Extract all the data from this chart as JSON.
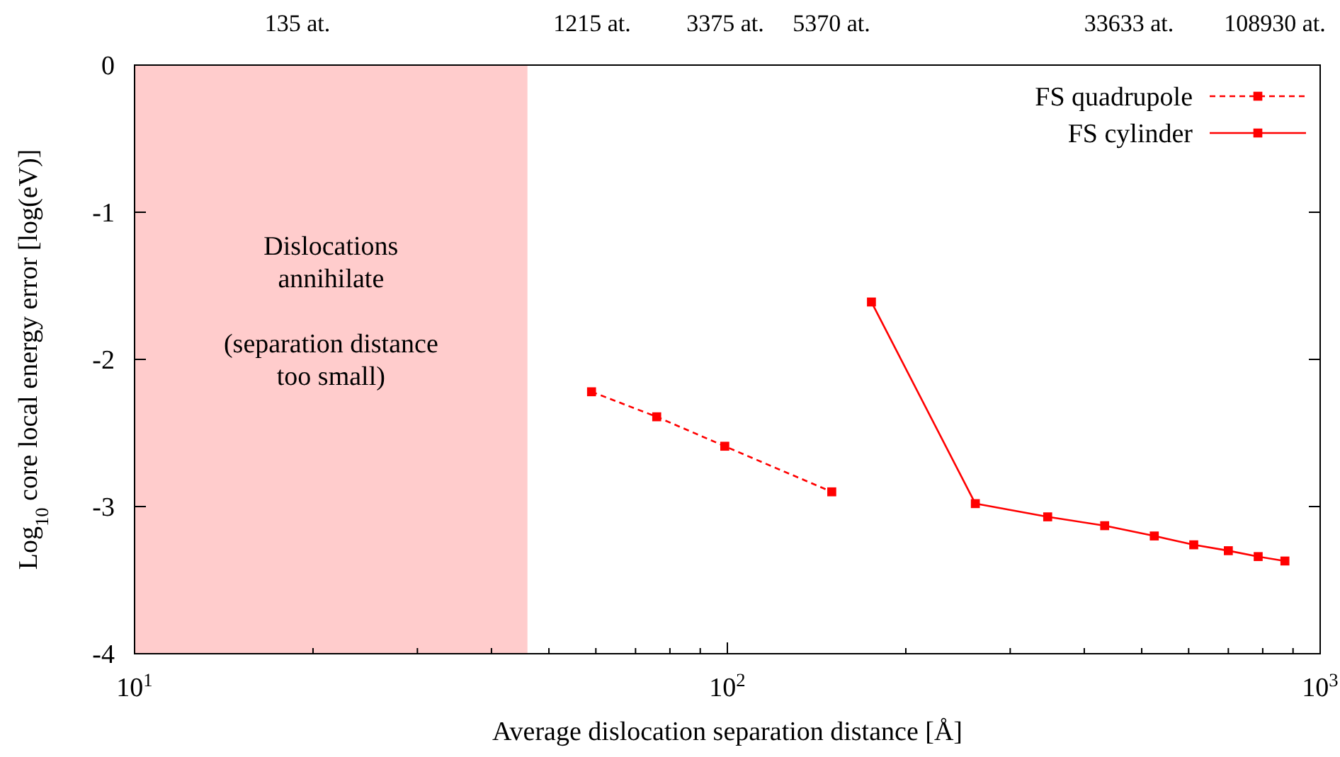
{
  "chart_data": {
    "type": "line",
    "xlabel": "Average dislocation separation distance [Å]",
    "ylabel": "Log$_{10}$ core local energy error [log(eV)]",
    "log": "x",
    "xlim": [
      10,
      1000
    ],
    "xticks": [
      {
        "value": 10,
        "label": "10$^{1}$"
      },
      {
        "value": 100,
        "label": "10$^{2}$"
      },
      {
        "value": 1000,
        "label": "10$^{3}$"
      }
    ],
    "annotations": [
      "135 at.",
      "1215 at.",
      "3375 at.",
      "5370 at.",
      "33633 at.",
      "108930 at."
    ],
    "ylim": [
      -4,
      0
    ],
    "yticks": [
      -4,
      -3,
      -2,
      -1,
      0
    ],
    "grid": false,
    "legend": "top right",
    "marker": "square",
    "bands": [
      {
        "axis": "x",
        "from": 10,
        "to": 46,
        "label": "Dislocations\nannihilate\n\n(separation distance\ntoo small)",
        "color": "#ffcccc"
      }
    ],
    "series": [
      {
        "name": "FS quadrupole",
        "color": "#ff0000",
        "line_style": "dashed",
        "x": [
          59,
          76,
          99,
          150
        ],
        "values": [
          -2.22,
          -2.39,
          -2.59,
          -2.9
        ]
      },
      {
        "name": "FS cylinder",
        "color": "#ff0000",
        "line_style": "solid",
        "x": [
          175,
          262,
          347,
          433,
          525,
          612,
          700,
          786,
          872
        ],
        "values": [
          -1.61,
          -2.98,
          -3.07,
          -3.13,
          -3.2,
          -3.26,
          -3.3,
          -3.34,
          -3.37
        ]
      }
    ]
  }
}
